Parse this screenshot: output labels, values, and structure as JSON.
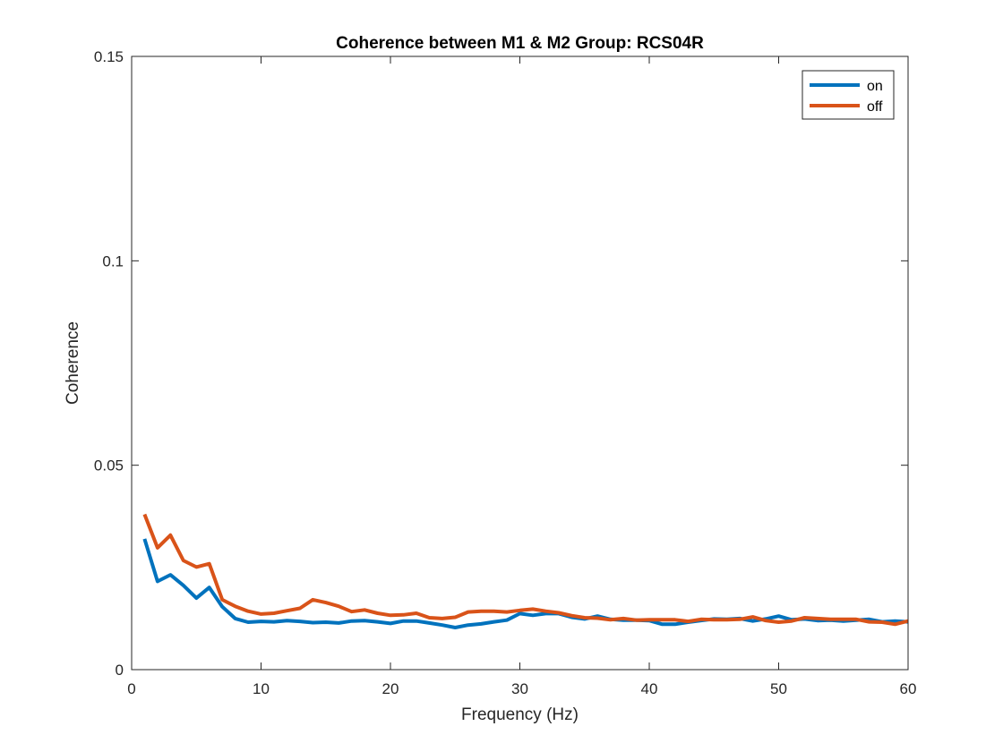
{
  "chart_data": {
    "type": "line",
    "title": "Coherence between M1 & M2 Group: RCS04R",
    "xlabel": "Frequency (Hz)",
    "ylabel": "Coherence",
    "xlim": [
      0,
      60
    ],
    "ylim": [
      0,
      0.15
    ],
    "xticks": [
      0,
      10,
      20,
      30,
      40,
      50,
      60
    ],
    "xtick_labels": [
      "0",
      "10",
      "20",
      "30",
      "40",
      "50",
      "60"
    ],
    "yticks": [
      0,
      0.05,
      0.1,
      0.15
    ],
    "ytick_labels": [
      "0",
      "0.05",
      "0.1",
      "0.15"
    ],
    "grid": false,
    "legend_position": "top-right",
    "x": [
      1,
      2,
      3,
      4,
      5,
      6,
      7,
      8,
      9,
      10,
      11,
      12,
      13,
      14,
      15,
      16,
      17,
      18,
      19,
      20,
      21,
      22,
      23,
      24,
      25,
      26,
      27,
      28,
      29,
      30,
      31,
      32,
      33,
      34,
      35,
      36,
      37,
      38,
      39,
      40,
      41,
      42,
      43,
      44,
      45,
      46,
      47,
      48,
      49,
      50,
      51,
      52,
      53,
      54,
      55,
      56,
      57,
      58,
      59,
      60
    ],
    "series": [
      {
        "name": "on",
        "color": "#0072BD",
        "values": [
          0.032,
          0.0216,
          0.0232,
          0.0206,
          0.0175,
          0.0201,
          0.0154,
          0.0125,
          0.0116,
          0.0118,
          0.0117,
          0.012,
          0.0118,
          0.0115,
          0.0116,
          0.0114,
          0.0119,
          0.012,
          0.0117,
          0.0113,
          0.0119,
          0.0119,
          0.0114,
          0.0109,
          0.0103,
          0.0109,
          0.0112,
          0.0117,
          0.0121,
          0.0137,
          0.0133,
          0.0137,
          0.0137,
          0.0128,
          0.0124,
          0.0131,
          0.0123,
          0.0121,
          0.0121,
          0.012,
          0.0111,
          0.0111,
          0.0116,
          0.012,
          0.0124,
          0.0123,
          0.0125,
          0.0119,
          0.0124,
          0.0131,
          0.0122,
          0.0124,
          0.012,
          0.0121,
          0.0119,
          0.0121,
          0.0123,
          0.0117,
          0.0119,
          0.0117
        ]
      },
      {
        "name": "off",
        "color": "#D95319",
        "values": [
          0.038,
          0.0298,
          0.0329,
          0.0267,
          0.0251,
          0.0259,
          0.0171,
          0.0155,
          0.0143,
          0.0136,
          0.0138,
          0.0144,
          0.015,
          0.0171,
          0.0164,
          0.0155,
          0.0142,
          0.0146,
          0.0138,
          0.0133,
          0.0134,
          0.0138,
          0.0127,
          0.0125,
          0.0128,
          0.0141,
          0.0143,
          0.0143,
          0.0141,
          0.0145,
          0.0148,
          0.0143,
          0.0139,
          0.0132,
          0.0127,
          0.0126,
          0.0122,
          0.0125,
          0.0121,
          0.0122,
          0.0122,
          0.0122,
          0.0118,
          0.0123,
          0.0122,
          0.0122,
          0.0123,
          0.0129,
          0.012,
          0.0116,
          0.0119,
          0.0127,
          0.0125,
          0.0123,
          0.0123,
          0.0123,
          0.0117,
          0.0116,
          0.0111,
          0.0119
        ]
      }
    ]
  }
}
